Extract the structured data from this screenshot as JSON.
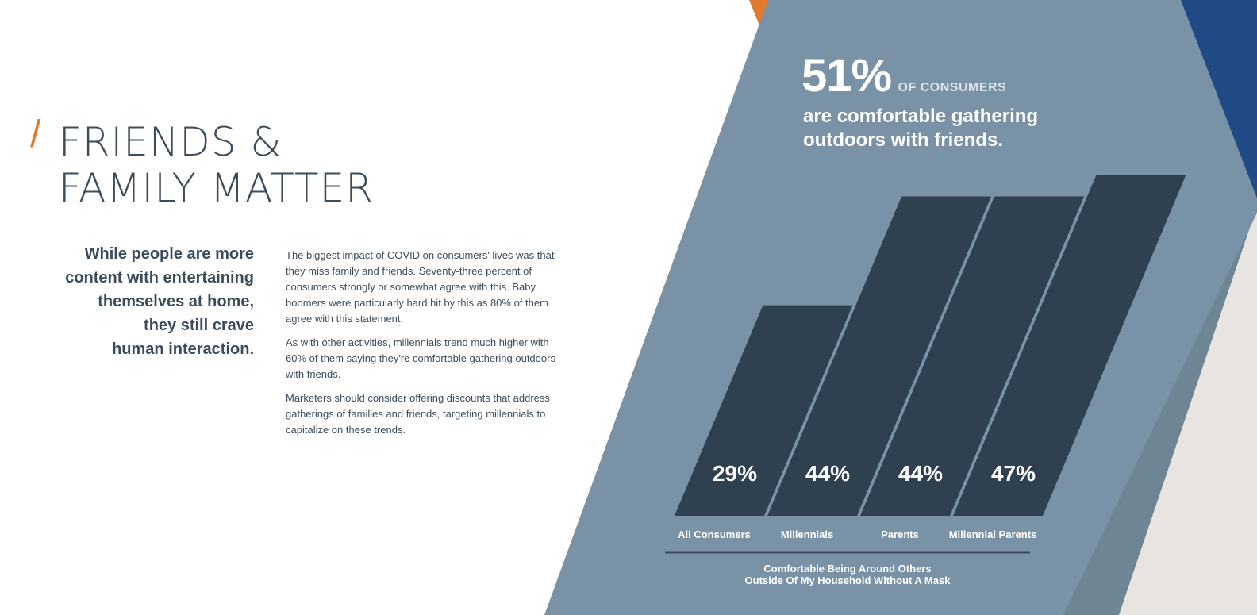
{
  "heading": {
    "slash": "/",
    "line1": "FRIENDS &",
    "line2": "FAMILY MATTER"
  },
  "subhead": {
    "lines": [
      "While people are more",
      "content with entertaining",
      "themselves at home,",
      "they still crave",
      "human interaction."
    ]
  },
  "body": {
    "p1": "The biggest impact of COVID on consumers' lives was that they miss family and friends. Seventy-three percent of consumers strongly or somewhat agree with this. Baby boomers were particularly hard hit by this as 80% of them agree with this statement.",
    "p2": "As with other activities, millennials trend much higher with 60% of them saying they're comfortable gathering outdoors with friends.",
    "p3": "Marketers should consider offering discounts that address gatherings of families and friends, targeting millennials to capitalize on these trends."
  },
  "callout": {
    "percent": "51%",
    "of_label": "OF CONSUMERS",
    "description": "are comfortable gathering outdoors with friends."
  },
  "colors": {
    "panel": "#7a92a6",
    "bar": "#2f4150",
    "orange": "#e07a2f",
    "navy": "#1f4a86",
    "slate": "#6e8593",
    "cream": "#e8e4df",
    "text": "#3d4c5a"
  },
  "chart_data": {
    "type": "bar",
    "categories": [
      "All Consumers",
      "Millennials",
      "Parents",
      "Millennial Parents"
    ],
    "values": [
      29,
      44,
      44,
      47
    ],
    "value_labels": [
      "29%",
      "44%",
      "44%",
      "47%"
    ],
    "title": "",
    "xlabel": "Comfortable Being Around Others Outside Of My Household Without A Mask",
    "xlabel_lines": [
      "Comfortable Being Around Others",
      "Outside Of My Household Without A Mask"
    ],
    "ylabel": "",
    "ylim": [
      0,
      50
    ],
    "grid": false
  }
}
